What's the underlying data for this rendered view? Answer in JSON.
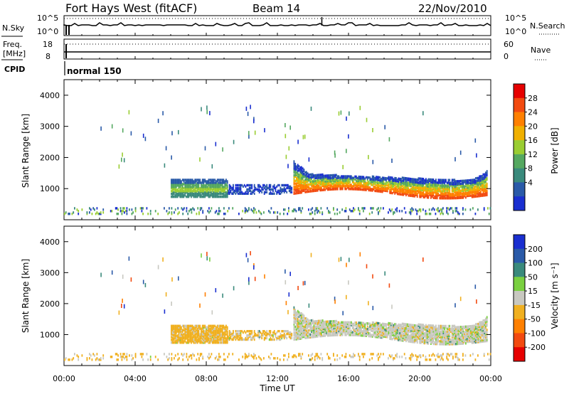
{
  "header": {
    "radar": "Fort Hays West (fitACF)",
    "beam": "Beam 14",
    "date": "22/Nov/2010"
  },
  "status_panels": {
    "nsky": {
      "label": "N.Sky",
      "y_ticks": [
        "10^5",
        "10^0"
      ],
      "right_label": "N.Search",
      "right_ticks": [
        "10^5",
        "10^0"
      ]
    },
    "freq": {
      "label_line1": "Freq.",
      "label_line2": "[MHz]",
      "y_ticks": [
        "18",
        "8"
      ],
      "right_label": "Nave",
      "right_ticks": [
        "60",
        "0"
      ]
    },
    "cpid": {
      "label": "CPID",
      "mode_text": "normal 150"
    }
  },
  "time_axis": {
    "label": "Time UT",
    "ticks": [
      "00:00",
      "04:00",
      "08:00",
      "12:00",
      "16:00",
      "20:00",
      "00:00"
    ],
    "tick_hours": [
      0,
      4,
      8,
      12,
      16,
      20,
      24
    ]
  },
  "colors": {
    "power_scale": [
      "#1a2fd0",
      "#2a5aa8",
      "#3a8a7c",
      "#55a860",
      "#9acd32",
      "#f0b000",
      "#ff8000",
      "#f24a10",
      "#e60000"
    ],
    "velocity_scale": [
      "#1a2fd0",
      "#2a5aa8",
      "#3a8a7c",
      "#7ad040",
      "#c8c8c0",
      "#f0b020",
      "#ff8000",
      "#f24a10",
      "#e60000"
    ],
    "axis": "#000000"
  },
  "chart_data": [
    {
      "type": "heatmap",
      "title": "",
      "quantity": "Power",
      "ylabel": "Slant Range [km]",
      "xlabel": "",
      "xlim_hours": [
        0,
        24
      ],
      "ylim": [
        0,
        4500
      ],
      "y_ticks": [
        1000,
        2000,
        3000,
        4000
      ],
      "colorbar": {
        "label": "Power [dB]",
        "tick_labels": [
          "28",
          "24",
          "20",
          "16",
          "12",
          "8",
          "4"
        ],
        "range": [
          0,
          30
        ]
      },
      "regions": [
        {
          "start_h": 6.0,
          "end_h": 9.2,
          "range_min": 700,
          "range_max": 1250,
          "level": "mid"
        },
        {
          "start_h": 9.2,
          "end_h": 12.8,
          "range_min": 800,
          "range_max": 1100,
          "level": "low"
        },
        {
          "start_h": 12.9,
          "end_h": 23.8,
          "range_min": 750,
          "range_max": 1700,
          "level": "high"
        },
        {
          "start_h": 0.0,
          "end_h": 24.0,
          "range_min": 150,
          "range_max": 350,
          "level": "ground"
        }
      ]
    },
    {
      "type": "heatmap",
      "title": "",
      "quantity": "Velocity",
      "ylabel": "Slant Range [km]",
      "xlabel": "Time UT",
      "xlim_hours": [
        0,
        24
      ],
      "ylim": [
        0,
        4500
      ],
      "y_ticks": [
        1000,
        2000,
        3000,
        4000
      ],
      "colorbar": {
        "label": "Velocity [m s⁻¹]",
        "tick_labels": [
          "200",
          "100",
          "50",
          "15",
          "-15",
          "-50",
          "-100",
          "-200"
        ],
        "range": [
          -250,
          250
        ]
      },
      "regions": [
        {
          "start_h": 6.0,
          "end_h": 9.2,
          "range_min": 700,
          "range_max": 1250,
          "velocity": -30
        },
        {
          "start_h": 9.2,
          "end_h": 12.8,
          "range_min": 800,
          "range_max": 1100,
          "velocity": -20
        },
        {
          "start_h": 12.9,
          "end_h": 23.8,
          "range_min": 750,
          "range_max": 1700,
          "velocity": 0
        },
        {
          "start_h": 0.0,
          "end_h": 24.0,
          "range_min": 150,
          "range_max": 350,
          "velocity": -25
        }
      ]
    }
  ]
}
